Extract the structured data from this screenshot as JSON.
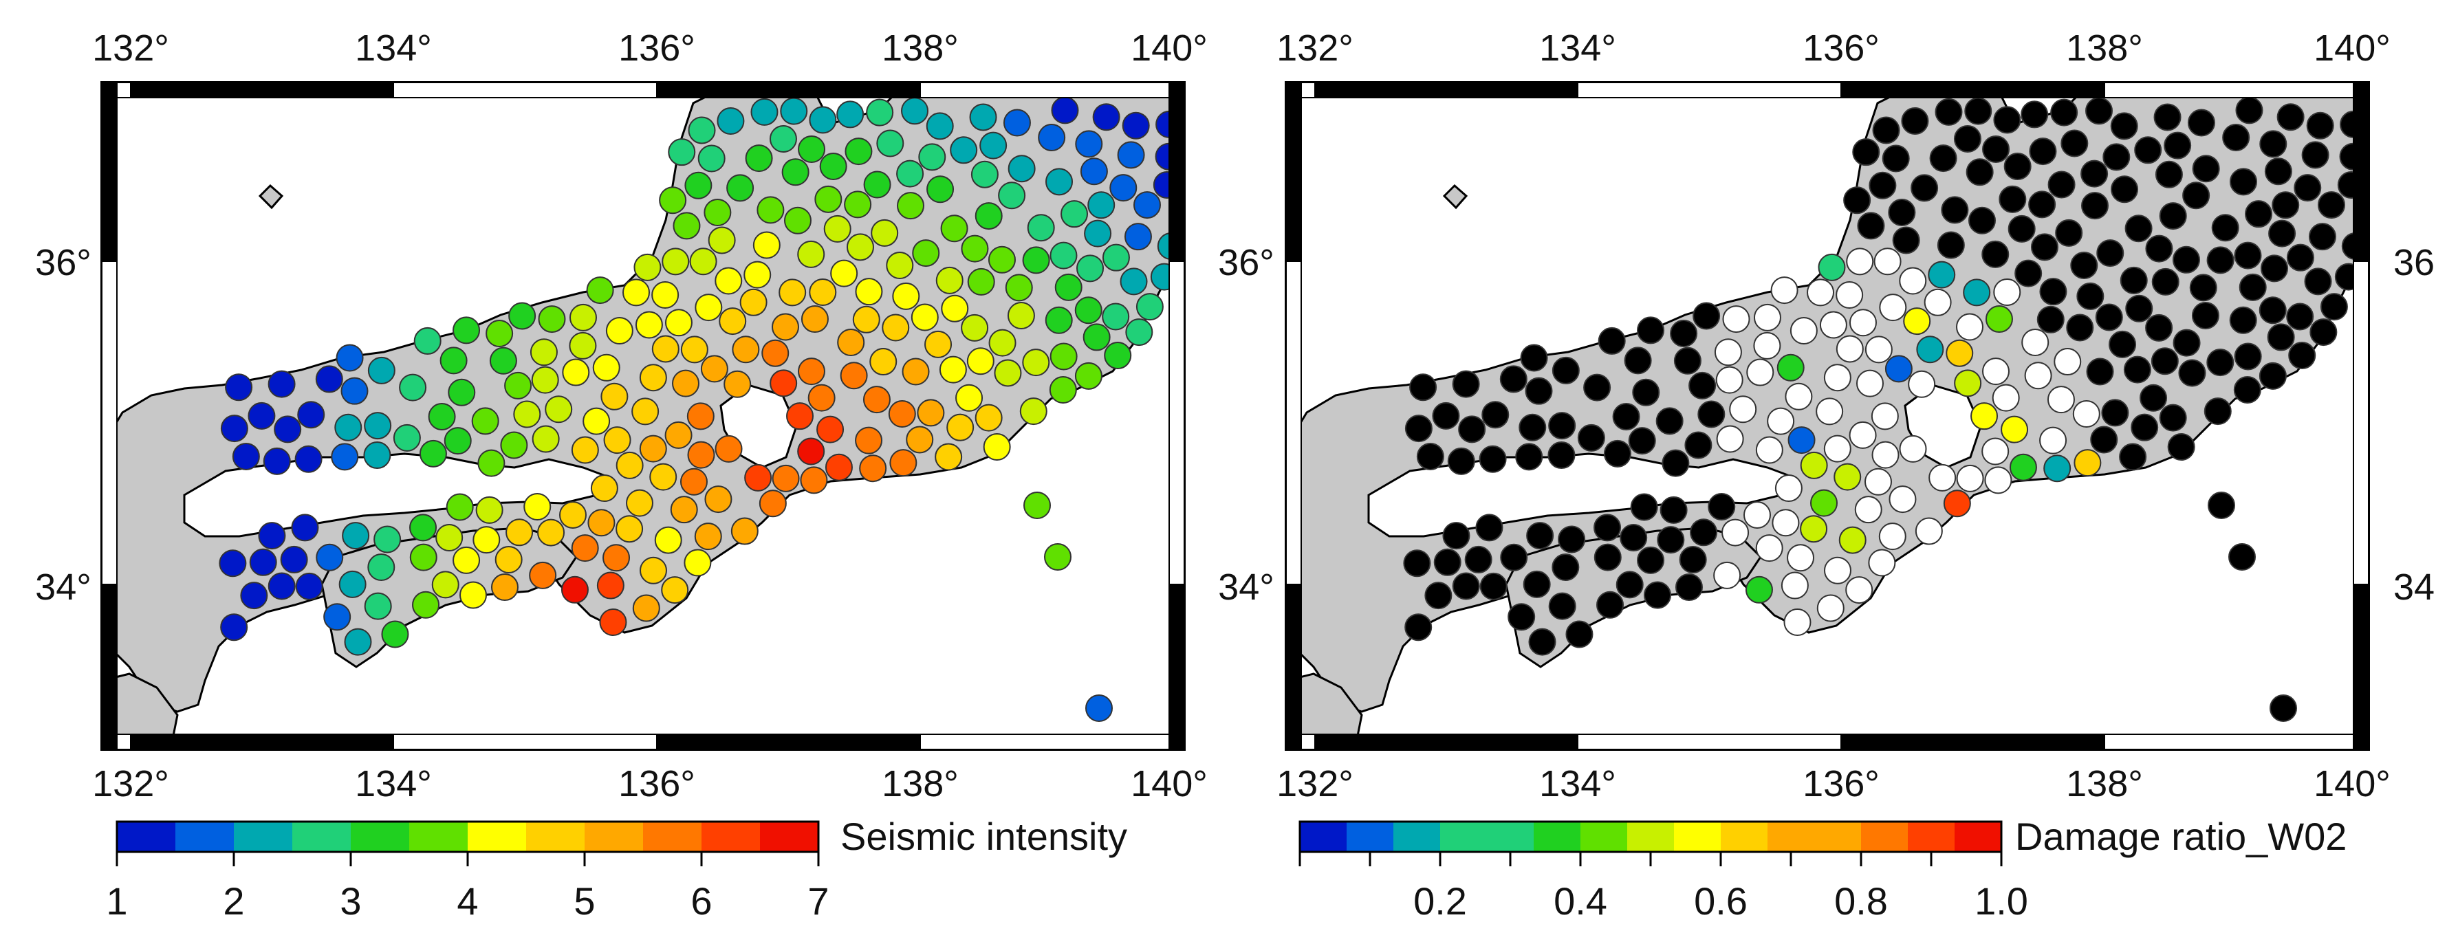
{
  "maps": [
    {
      "id": "seismic",
      "lon_ticks": [
        "132°",
        "134°",
        "136°",
        "138°",
        "140°"
      ],
      "lat_ticks_left": [
        "36°",
        "34°"
      ],
      "lat_ticks_right": [],
      "colorbar": {
        "title": "Seismic intensity",
        "labels": [
          "1",
          "2",
          "3",
          "4",
          "5",
          "6",
          "7"
        ],
        "range": [
          1,
          7
        ]
      }
    },
    {
      "id": "damage",
      "lon_ticks": [
        "132°",
        "134°",
        "136°",
        "138°",
        "140°"
      ],
      "lat_ticks_left": [
        "36°",
        "34°"
      ],
      "lat_ticks_right": [
        "36",
        "34"
      ],
      "colorbar": {
        "title": "Damage ratio_W02",
        "labels": [
          "0.2",
          "0.4",
          "0.6",
          "0.8",
          "1.0"
        ],
        "range": [
          0,
          1
        ]
      }
    }
  ],
  "extent": {
    "lon": [
      132,
      140
    ],
    "lat": [
      33,
      37
    ]
  },
  "colors": {
    "land": "#c8c8c8",
    "ocean": "#ffffff",
    "no_damage_black": "#000000",
    "zero_damage_white": "#ffffff",
    "ramp": [
      "#0018c8",
      "#0060e0",
      "#00a8b0",
      "#20d078",
      "#20d020",
      "#60e000",
      "#c8f000",
      "#ffff00",
      "#ffd000",
      "#ffa800",
      "#ff7800",
      "#ff4000",
      "#f01000"
    ]
  }
}
